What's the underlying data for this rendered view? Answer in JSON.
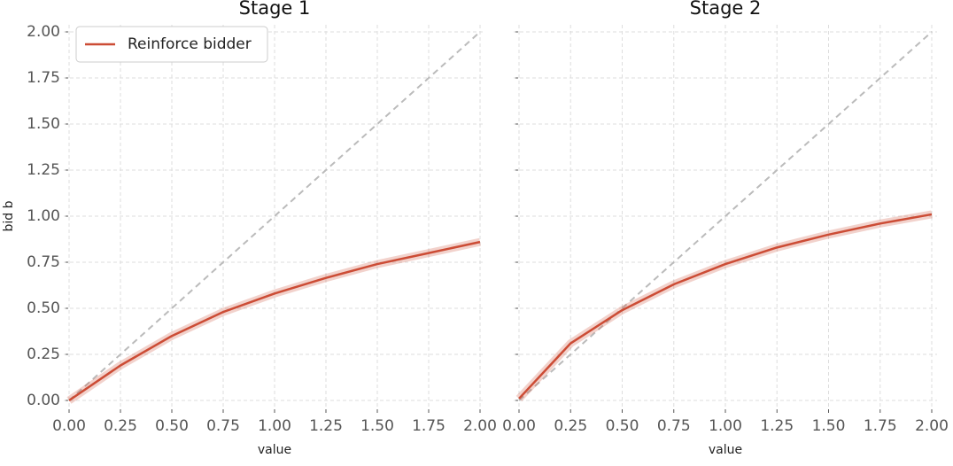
{
  "chart_data": [
    {
      "type": "line",
      "title": "Stage 1",
      "xlabel": "value",
      "ylabel": "bid b",
      "x": [
        0,
        0.25,
        0.5,
        0.75,
        1.0,
        1.25,
        1.5,
        1.75,
        2.0
      ],
      "series": [
        {
          "name": "Reinforce bidder",
          "color": "#cc4c35",
          "values": [
            0,
            0.19,
            0.35,
            0.48,
            0.58,
            0.665,
            0.74,
            0.8,
            0.86
          ]
        }
      ],
      "reference": {
        "x": [
          0,
          2
        ],
        "values": [
          0,
          2
        ],
        "color": "#bbbbbb"
      },
      "xlim": [
        0,
        2
      ],
      "ylim": [
        0,
        2
      ],
      "xticks": [
        {
          "value": 0,
          "label": "0.00"
        },
        {
          "value": 0.25,
          "label": "0.25"
        },
        {
          "value": 0.5,
          "label": "0.50"
        },
        {
          "value": 0.75,
          "label": "0.75"
        },
        {
          "value": 1,
          "label": "1.00"
        },
        {
          "value": 1.25,
          "label": "1.25"
        },
        {
          "value": 1.5,
          "label": "1.50"
        },
        {
          "value": 1.75,
          "label": "1.75"
        },
        {
          "value": 2,
          "label": "2.00"
        }
      ],
      "yticks": [
        {
          "value": 0,
          "label": "0.00"
        },
        {
          "value": 0.25,
          "label": "0.25"
        },
        {
          "value": 0.5,
          "label": "0.50"
        },
        {
          "value": 0.75,
          "label": "0.75"
        },
        {
          "value": 1,
          "label": "1.00"
        },
        {
          "value": 1.25,
          "label": "1.25"
        },
        {
          "value": 1.5,
          "label": "1.50"
        },
        {
          "value": 1.75,
          "label": "1.75"
        },
        {
          "value": 2,
          "label": "2.00"
        }
      ],
      "grid": true,
      "legend": "upper left"
    },
    {
      "type": "line",
      "title": "Stage 2",
      "xlabel": "value",
      "x": [
        0,
        0.25,
        0.5,
        0.75,
        1.0,
        1.25,
        1.5,
        1.75,
        2.0
      ],
      "series": [
        {
          "color": "#cc4c35",
          "values": [
            0.01,
            0.31,
            0.49,
            0.63,
            0.74,
            0.83,
            0.9,
            0.96,
            1.01
          ]
        }
      ],
      "reference": {
        "x": [
          0,
          2
        ],
        "values": [
          0,
          2
        ],
        "color": "#bbbbbb"
      },
      "xlim": [
        0,
        2
      ],
      "ylim": [
        0,
        2
      ],
      "xticks": [
        {
          "value": 0,
          "label": "0.00"
        },
        {
          "value": 0.25,
          "label": "0.25"
        },
        {
          "value": 0.5,
          "label": "0.50"
        },
        {
          "value": 0.75,
          "label": "0.75"
        },
        {
          "value": 1,
          "label": "1.00"
        },
        {
          "value": 1.25,
          "label": "1.25"
        },
        {
          "value": 1.5,
          "label": "1.50"
        },
        {
          "value": 1.75,
          "label": "1.75"
        },
        {
          "value": 2,
          "label": "2.00"
        }
      ],
      "yticks": [
        0,
        0.25,
        0.5,
        0.75,
        1,
        1.25,
        1.5,
        1.75,
        2
      ],
      "grid": true
    }
  ]
}
